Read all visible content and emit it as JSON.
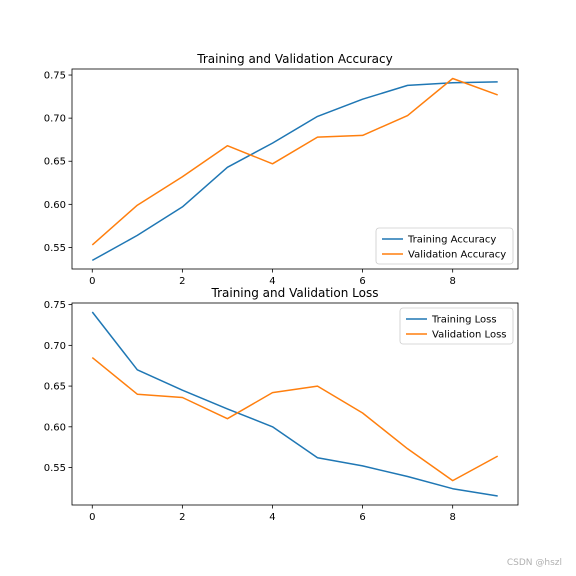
{
  "chart_data": [
    {
      "type": "line",
      "title": "Training and Validation Accuracy",
      "xlim": [
        -0.45,
        9.45
      ],
      "ylim": [
        0.525,
        0.757
      ],
      "x_ticks": [
        0,
        2,
        4,
        6,
        8
      ],
      "x_tick_labels": [
        "0",
        "2",
        "4",
        "6",
        "8"
      ],
      "y_ticks": [
        0.55,
        0.6,
        0.65,
        0.7,
        0.75
      ],
      "y_tick_labels": [
        "0.55",
        "0.60",
        "0.65",
        "0.70",
        "0.75"
      ],
      "legend_position": "lower-right",
      "x": [
        0,
        1,
        2,
        3,
        4,
        5,
        6,
        7,
        8,
        9
      ],
      "series": [
        {
          "name": "Training Accuracy",
          "color": "#1f77b4",
          "values": [
            0.535,
            0.564,
            0.597,
            0.643,
            0.671,
            0.702,
            0.722,
            0.738,
            0.741,
            0.742
          ]
        },
        {
          "name": "Validation Accuracy",
          "color": "#ff7f0e",
          "values": [
            0.553,
            0.599,
            0.632,
            0.668,
            0.647,
            0.678,
            0.68,
            0.703,
            0.746,
            0.727
          ]
        }
      ]
    },
    {
      "type": "line",
      "title": "Training and Validation Loss",
      "xlim": [
        -0.45,
        9.45
      ],
      "ylim": [
        0.504,
        0.752
      ],
      "x_ticks": [
        0,
        2,
        4,
        6,
        8
      ],
      "x_tick_labels": [
        "0",
        "2",
        "4",
        "6",
        "8"
      ],
      "y_ticks": [
        0.55,
        0.6,
        0.65,
        0.7,
        0.75
      ],
      "y_tick_labels": [
        "0.55",
        "0.60",
        "0.65",
        "0.70",
        "0.75"
      ],
      "legend_position": "upper-right",
      "x": [
        0,
        1,
        2,
        3,
        4,
        5,
        6,
        7,
        8,
        9
      ],
      "series": [
        {
          "name": "Training Loss",
          "color": "#1f77b4",
          "values": [
            0.741,
            0.67,
            0.645,
            0.622,
            0.6,
            0.562,
            0.552,
            0.539,
            0.524,
            0.515
          ]
        },
        {
          "name": "Validation Loss",
          "color": "#ff7f0e",
          "values": [
            0.685,
            0.64,
            0.636,
            0.61,
            0.642,
            0.65,
            0.617,
            0.573,
            0.534,
            0.564
          ]
        }
      ]
    }
  ],
  "watermark": "CSDN @hszl"
}
